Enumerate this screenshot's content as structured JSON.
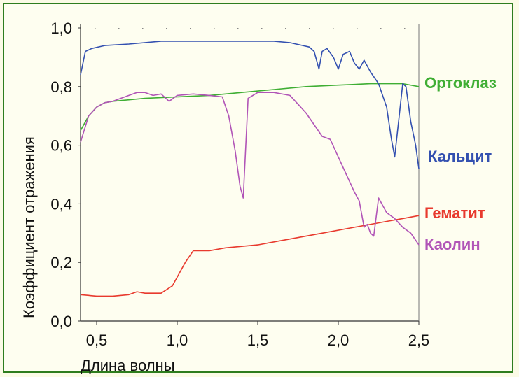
{
  "chart_data": {
    "type": "line",
    "xlabel": "Длина волны",
    "ylabel": "Коэффициент отражения",
    "xlim": [
      0.4,
      2.5
    ],
    "ylim": [
      0.0,
      1.0
    ],
    "x_ticks": [
      "0,5",
      "1,0",
      "1,5",
      "2,0",
      "2,5"
    ],
    "y_ticks": [
      "0,0",
      "0,2",
      "0,4",
      "0,6",
      "0,8",
      "1,0"
    ],
    "grid": false,
    "series": [
      {
        "name": "Ортоклаз",
        "color": "#3fae34",
        "x": [
          0.4,
          0.45,
          0.5,
          0.55,
          0.6,
          0.7,
          0.8,
          1.0,
          1.2,
          1.4,
          1.6,
          1.8,
          2.0,
          2.2,
          2.35,
          2.4,
          2.5
        ],
        "y": [
          0.65,
          0.7,
          0.73,
          0.745,
          0.75,
          0.755,
          0.76,
          0.765,
          0.77,
          0.78,
          0.79,
          0.8,
          0.805,
          0.81,
          0.81,
          0.81,
          0.8
        ]
      },
      {
        "name": "Кальцит",
        "color": "#3350b0",
        "x": [
          0.4,
          0.43,
          0.47,
          0.55,
          0.7,
          0.9,
          1.0,
          1.2,
          1.4,
          1.6,
          1.7,
          1.78,
          1.82,
          1.85,
          1.88,
          1.9,
          1.93,
          1.97,
          2.0,
          2.03,
          2.07,
          2.1,
          2.13,
          2.16,
          2.2,
          2.25,
          2.3,
          2.33,
          2.35,
          2.37,
          2.4,
          2.42,
          2.45,
          2.48,
          2.5
        ],
        "y": [
          0.84,
          0.92,
          0.93,
          0.94,
          0.945,
          0.955,
          0.955,
          0.955,
          0.955,
          0.955,
          0.95,
          0.94,
          0.935,
          0.92,
          0.86,
          0.92,
          0.93,
          0.9,
          0.86,
          0.91,
          0.92,
          0.88,
          0.86,
          0.89,
          0.85,
          0.81,
          0.73,
          0.62,
          0.56,
          0.66,
          0.81,
          0.8,
          0.68,
          0.6,
          0.52
        ]
      },
      {
        "name": "Гематит",
        "color": "#e83a2e",
        "x": [
          0.4,
          0.5,
          0.6,
          0.7,
          0.75,
          0.8,
          0.9,
          0.97,
          1.05,
          1.1,
          1.2,
          1.3,
          1.5,
          1.7,
          1.9,
          2.1,
          2.3,
          2.4,
          2.5
        ],
        "y": [
          0.09,
          0.085,
          0.085,
          0.09,
          0.1,
          0.095,
          0.095,
          0.12,
          0.2,
          0.24,
          0.24,
          0.25,
          0.26,
          0.28,
          0.3,
          0.32,
          0.34,
          0.35,
          0.36
        ]
      },
      {
        "name": "Каолин",
        "color": "#b155b7",
        "x": [
          0.4,
          0.45,
          0.5,
          0.55,
          0.6,
          0.7,
          0.75,
          0.8,
          0.85,
          0.9,
          0.95,
          1.0,
          1.1,
          1.2,
          1.28,
          1.32,
          1.36,
          1.39,
          1.41,
          1.44,
          1.5,
          1.6,
          1.7,
          1.75,
          1.8,
          1.9,
          1.95,
          2.0,
          2.05,
          2.1,
          2.13,
          2.16,
          2.18,
          2.2,
          2.22,
          2.25,
          2.3,
          2.35,
          2.4,
          2.45,
          2.5
        ],
        "y": [
          0.61,
          0.7,
          0.73,
          0.745,
          0.75,
          0.77,
          0.78,
          0.78,
          0.77,
          0.775,
          0.75,
          0.77,
          0.775,
          0.77,
          0.765,
          0.7,
          0.58,
          0.46,
          0.42,
          0.76,
          0.78,
          0.78,
          0.77,
          0.74,
          0.71,
          0.63,
          0.62,
          0.56,
          0.5,
          0.44,
          0.41,
          0.32,
          0.33,
          0.3,
          0.29,
          0.42,
          0.37,
          0.35,
          0.32,
          0.3,
          0.26
        ]
      }
    ]
  }
}
